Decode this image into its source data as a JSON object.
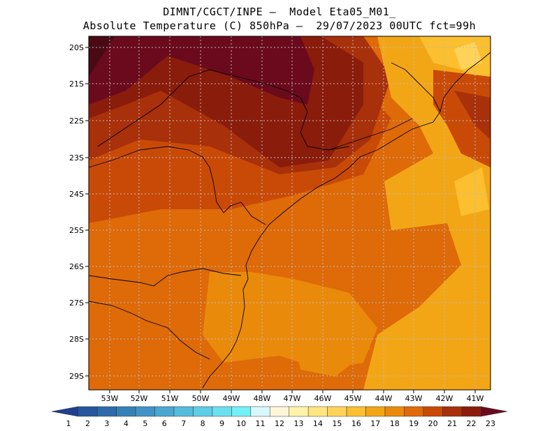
{
  "title": {
    "line1": "DIMNT/CGCT/INPE –  Model Eta05_M01_",
    "line2": "Absolute Temperature (C) 850hPa –  29/07/2023 00UTC fct=99h"
  },
  "map": {
    "lat_ticks": [
      "20S",
      "21S",
      "22S",
      "23S",
      "24S",
      "25S",
      "26S",
      "27S",
      "28S",
      "29S"
    ],
    "lon_ticks": [
      "53W",
      "52W",
      "51W",
      "50W",
      "49W",
      "48W",
      "47W",
      "46W",
      "45W",
      "44W",
      "43W",
      "42W",
      "41W"
    ],
    "lat_range": [
      20,
      29.4
    ],
    "lon_range": [
      53.6,
      40.4
    ]
  },
  "colorbar": {
    "labels": [
      "1",
      "2",
      "3",
      "4",
      "5",
      "6",
      "7",
      "8",
      "9",
      "10",
      "11",
      "12",
      "13",
      "14",
      "15",
      "16",
      "17",
      "18",
      "19",
      "20",
      "21",
      "22",
      "23"
    ],
    "colors": [
      "#1f3f8f",
      "#25569e",
      "#2d6aab",
      "#3680b8",
      "#4093c4",
      "#4aa7d0",
      "#55bbdc",
      "#5fcde6",
      "#6ae0ef",
      "#74f0f7",
      "#d8f8fb",
      "#fff6d8",
      "#fff4a8",
      "#ffe680",
      "#ffd35a",
      "#fbbf2f",
      "#f3a615",
      "#ea8a0b",
      "#de6a08",
      "#c94a07",
      "#a8300a",
      "#8a1c0c",
      "#6b0a1c"
    ]
  }
}
